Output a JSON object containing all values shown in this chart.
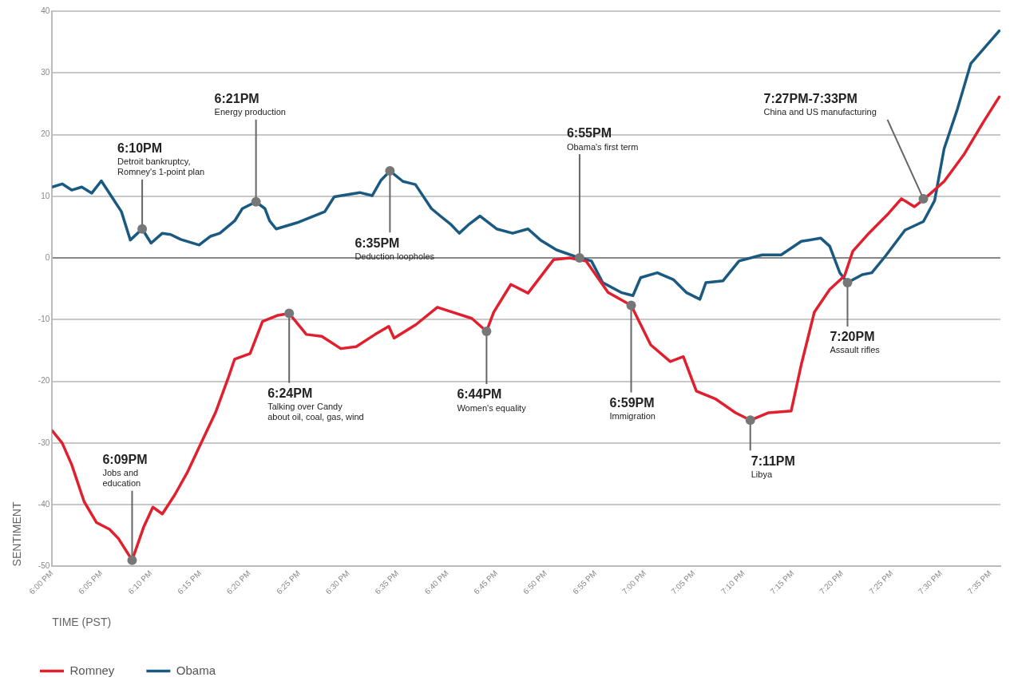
{
  "chart_data": {
    "type": "line",
    "xlabel": "TIME (PST)",
    "ylabel": "SENTIMENT",
    "xlim": [
      18,
      19.6
    ],
    "ylim": [
      -50,
      40
    ],
    "xticks": [
      {
        "value": 18,
        "label": "6:00 PM"
      },
      {
        "value": 18.083,
        "label": "6:05 PM"
      },
      {
        "value": 18.167,
        "label": "6:10 PM"
      },
      {
        "value": 18.25,
        "label": "6:15 PM"
      },
      {
        "value": 18.333,
        "label": "6:20 PM"
      },
      {
        "value": 18.417,
        "label": "6:25 PM"
      },
      {
        "value": 18.5,
        "label": "6:30 PM"
      },
      {
        "value": 18.583,
        "label": "6:35 PM"
      },
      {
        "value": 18.667,
        "label": "6:40 PM"
      },
      {
        "value": 18.75,
        "label": "6:45 PM"
      },
      {
        "value": 18.833,
        "label": "6:50 PM"
      },
      {
        "value": 18.917,
        "label": "6:55 PM"
      },
      {
        "value": 19,
        "label": "7:00 PM"
      },
      {
        "value": 19.083,
        "label": "7:05 PM"
      },
      {
        "value": 19.167,
        "label": "7:10 PM"
      },
      {
        "value": 19.25,
        "label": "7:15 PM"
      },
      {
        "value": 19.333,
        "label": "7:20 PM"
      },
      {
        "value": 19.417,
        "label": "7:25 PM"
      },
      {
        "value": 19.5,
        "label": "7:30 PM"
      },
      {
        "value": 19.583,
        "label": "7:35 PM"
      }
    ],
    "yticks": [
      -50,
      -40,
      -30,
      -20,
      -10,
      0,
      10,
      20,
      30,
      40
    ],
    "grid": "y",
    "legend": "bottom left",
    "marker": "none",
    "line_style": "solid",
    "series": [
      {
        "name": "Romney",
        "color": "#e0202e",
        "x": [
          18,
          18.017,
          18.033,
          18.054,
          18.075,
          18.097,
          18.112,
          18.135,
          18.155,
          18.17,
          18.186,
          18.207,
          18.228,
          18.248,
          18.276,
          18.297,
          18.308,
          18.334,
          18.355,
          18.381,
          18.4,
          18.429,
          18.455,
          18.487,
          18.513,
          18.545,
          18.568,
          18.577,
          18.614,
          18.65,
          18.676,
          18.708,
          18.733,
          18.745,
          18.774,
          18.803,
          18.846,
          18.873,
          18.901,
          18.938,
          18.977,
          19.01,
          19.043,
          19.065,
          19.087,
          19.12,
          19.153,
          19.178,
          19.209,
          19.247,
          19.264,
          19.286,
          19.312,
          19.337,
          19.351,
          19.378,
          19.411,
          19.433,
          19.455,
          19.472,
          19.505,
          19.538,
          19.571,
          19.598
        ],
        "values": [
          -28,
          -30,
          -33.5,
          -39.5,
          -42.9,
          -44,
          -45.5,
          -49,
          -43.5,
          -40.4,
          -41.5,
          -38.4,
          -34.8,
          -30.7,
          -25,
          -19.5,
          -16.4,
          -15.5,
          -10.3,
          -9.3,
          -9,
          -12.4,
          -12.7,
          -14.7,
          -14.4,
          -12.4,
          -11.1,
          -13,
          -10.8,
          -8,
          -8.8,
          -9.8,
          -11.9,
          -8.8,
          -4.3,
          -5.7,
          -0.3,
          0,
          -0.5,
          -5.6,
          -7.7,
          -14.1,
          -16.8,
          -16,
          -21.6,
          -22.9,
          -25.1,
          -26.3,
          -25.1,
          -24.8,
          -17.3,
          -8.8,
          -5.1,
          -2.9,
          1.1,
          4,
          7.2,
          9.6,
          8.3,
          9.6,
          12.4,
          16.7,
          22,
          26.1
        ]
      },
      {
        "name": "Obama",
        "color": "#1a5a80",
        "x": [
          18,
          18.017,
          18.033,
          18.05,
          18.067,
          18.083,
          18.1,
          18.117,
          18.132,
          18.152,
          18.167,
          18.186,
          18.2,
          18.217,
          18.248,
          18.267,
          18.283,
          18.308,
          18.321,
          18.344,
          18.359,
          18.367,
          18.378,
          18.413,
          18.46,
          18.476,
          18.519,
          18.54,
          18.555,
          18.57,
          18.592,
          18.613,
          18.64,
          18.655,
          18.672,
          18.687,
          18.704,
          18.722,
          18.75,
          18.777,
          18.803,
          18.824,
          18.851,
          18.89,
          18.91,
          18.929,
          18.96,
          18.98,
          18.993,
          19.021,
          19.048,
          19.07,
          19.093,
          19.103,
          19.132,
          19.159,
          19.198,
          19.23,
          19.264,
          19.297,
          19.312,
          19.329,
          19.342,
          19.367,
          19.383,
          19.406,
          19.439,
          19.47,
          19.489,
          19.505,
          19.527,
          19.55,
          19.598
        ],
        "values": [
          11.5,
          12,
          11,
          11.5,
          10.5,
          12.5,
          10,
          7.5,
          2.9,
          4.7,
          2.4,
          4,
          3.8,
          3,
          2.1,
          3.5,
          4,
          6,
          8,
          9.1,
          8,
          6,
          4.7,
          5.7,
          7.5,
          9.9,
          10.6,
          10.1,
          12.6,
          14.1,
          12.4,
          11.9,
          8,
          6.8,
          5.5,
          4,
          5.5,
          6.8,
          4.7,
          4,
          4.7,
          2.9,
          1.3,
          0,
          -0.5,
          -4,
          -5.6,
          -6.1,
          -3.2,
          -2.4,
          -3.5,
          -5.6,
          -6.7,
          -4,
          -3.7,
          -0.5,
          0.5,
          0.5,
          2.7,
          3.2,
          1.9,
          -2.4,
          -4,
          -2.7,
          -2.4,
          0.3,
          4.5,
          5.9,
          9.3,
          17.7,
          24,
          31.5,
          36.8
        ]
      }
    ],
    "annotations": [
      {
        "text": "6:09PM\nJobs and\neducation",
        "x": 18.135,
        "y": -49
      },
      {
        "text": "6:10PM\nDetroit bankruptcy,\nRomney's 1-point plan",
        "x": 18.152,
        "y": 4.7
      },
      {
        "text": "6:21PM\nEnergy production",
        "x": 18.344,
        "y": 9.1
      },
      {
        "text": "6:24PM\nTalking over Candy\nabout oil, coal, gas, wind",
        "x": 18.4,
        "y": -9
      },
      {
        "text": "6:35PM\nDeduction loopholes",
        "x": 18.57,
        "y": 14.1
      },
      {
        "text": "6:44PM\nWomen's equality",
        "x": 18.733,
        "y": -11.9
      },
      {
        "text": "6:55PM\nObama's first term",
        "x": 18.89,
        "y": 0
      },
      {
        "text": "6:59PM\nImmigration",
        "x": 18.977,
        "y": -7.7
      },
      {
        "text": "7:11PM\nLibya",
        "x": 19.178,
        "y": -26.3
      },
      {
        "text": "7:20PM\nAssault rifles",
        "x": 19.342,
        "y": -4
      },
      {
        "text": "7:27PM-7:33PM\nChina and US manufacturing",
        "x": 19.47,
        "y": 9.6
      }
    ]
  }
}
